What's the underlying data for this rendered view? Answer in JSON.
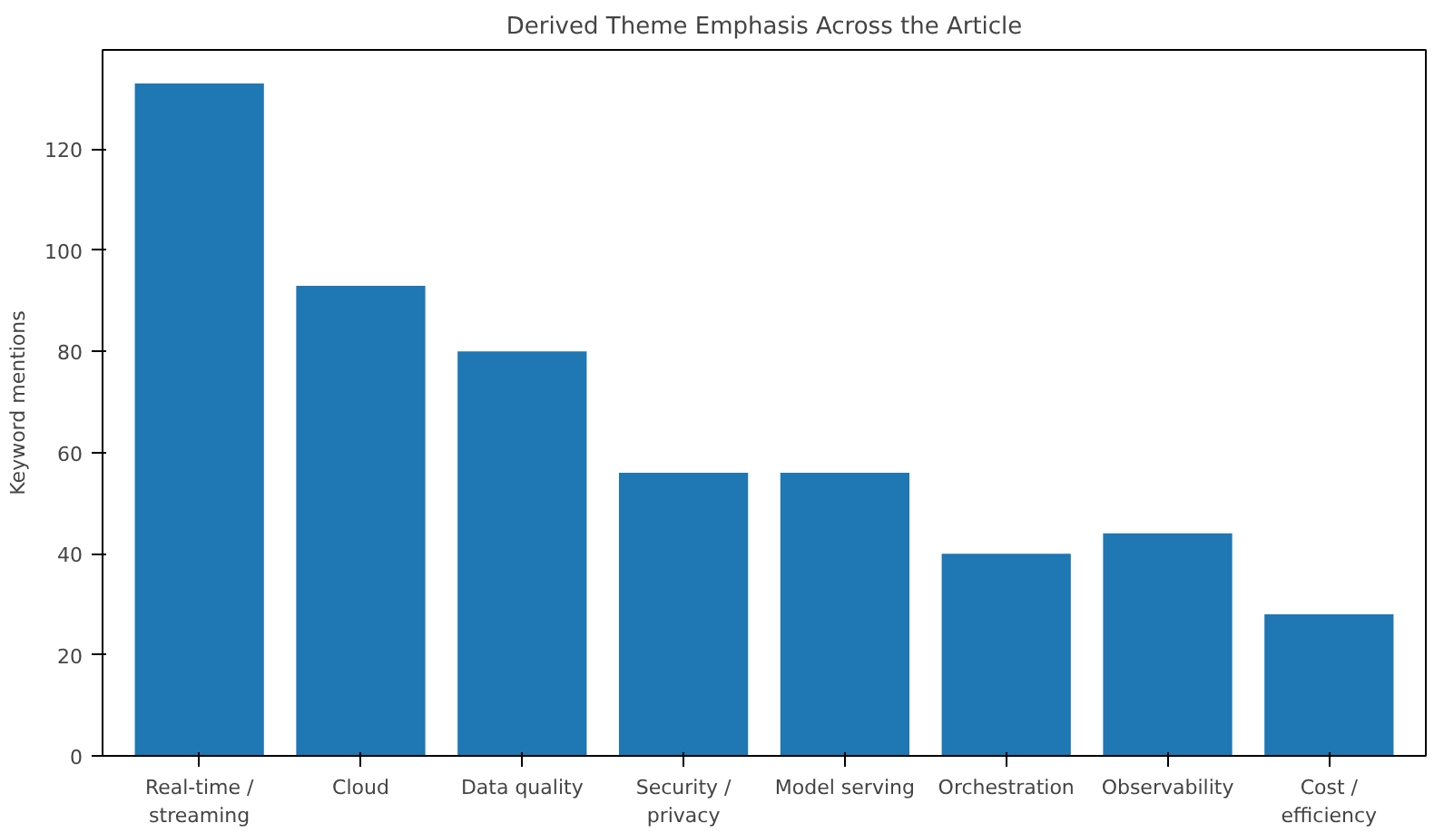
{
  "chart_data": {
    "type": "bar",
    "title": "Derived Theme Emphasis Across the Article",
    "ylabel": "Keyword mentions",
    "categories": [
      "Real-time /\nstreaming",
      "Cloud",
      "Data quality",
      "Security /\nprivacy",
      "Model serving",
      "Orchestration",
      "Observability",
      "Cost /\nefficiency"
    ],
    "values": [
      133,
      93,
      80,
      56,
      56,
      40,
      44,
      28
    ],
    "color": "#1f77b4",
    "ylim": [
      0,
      139.65
    ],
    "yticks": [
      0,
      20,
      40,
      60,
      80,
      100,
      120
    ],
    "grid": false
  }
}
